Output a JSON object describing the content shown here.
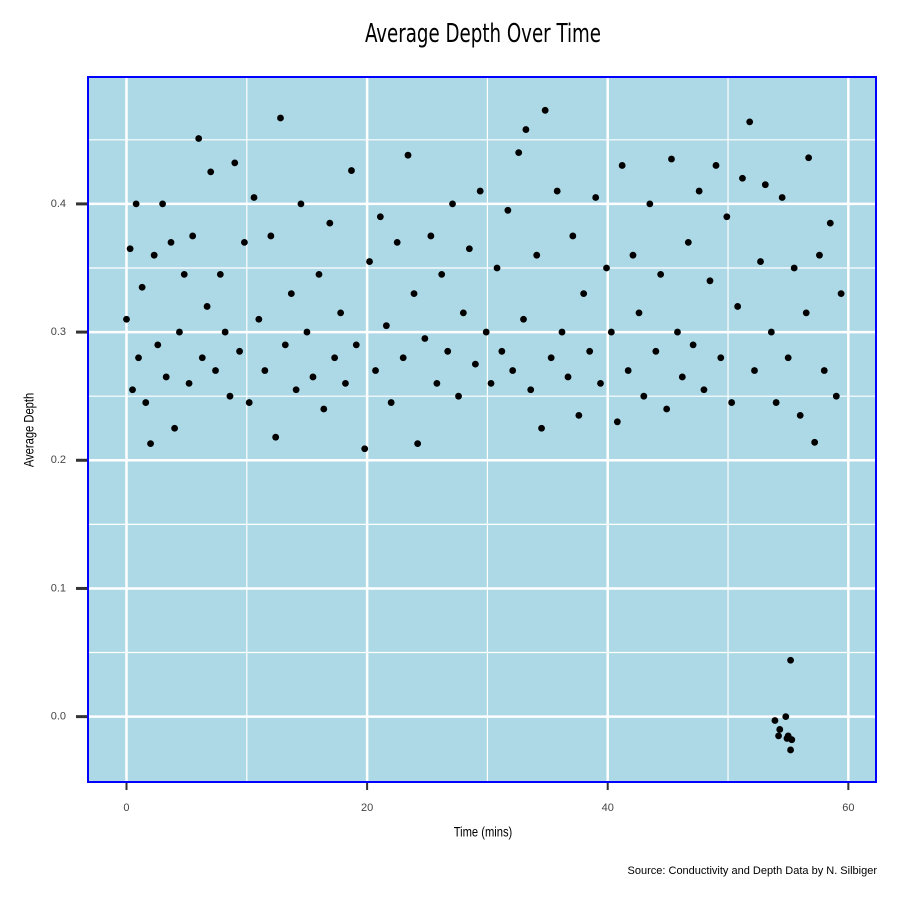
{
  "chart_data": {
    "type": "scatter",
    "title": "Average Depth Over Time",
    "x_label": "Time (mins)",
    "y_label": "Average Depth",
    "caption": "Source: Conductivity and Depth Data by N. Silbiger",
    "color": "#000000",
    "panel_color": "#add8e6",
    "border_color": "#0000ff",
    "grid": true,
    "xlim": [
      -3.2,
      62.3
    ],
    "ylim": [
      -0.051,
      0.499
    ],
    "xticks": [
      0,
      20,
      40,
      60
    ],
    "yticks": [
      {
        "value": 0,
        "label": "0.0"
      },
      0.1,
      0.2,
      0.3,
      0.4
    ],
    "minor_xticks": [
      10,
      30,
      50
    ],
    "minor_yticks": [
      0.05,
      0.15,
      0.25,
      0.35,
      0.45
    ],
    "x": [
      0,
      0.3,
      0.5,
      0.8,
      1,
      1.3,
      1.6,
      2,
      2.3,
      2.6,
      3,
      3.3,
      3.7,
      4,
      4.4,
      4.8,
      5.2,
      5.5,
      6,
      6.3,
      6.7,
      7,
      7.4,
      7.8,
      8.2,
      8.6,
      9,
      9.4,
      9.8,
      10.2,
      10.6,
      11,
      11.5,
      12,
      12.4,
      12.8,
      13.2,
      13.7,
      14.1,
      14.5,
      15,
      15.5,
      16,
      16.4,
      16.9,
      17.3,
      17.8,
      18.2,
      18.7,
      19.1,
      19.8,
      20.2,
      20.7,
      21.1,
      21.6,
      22,
      22.5,
      23,
      23.4,
      23.9,
      24.2,
      24.8,
      25.3,
      25.8,
      26.2,
      26.7,
      27.1,
      27.6,
      28,
      28.5,
      29,
      29.4,
      29.9,
      30.3,
      30.8,
      31.2,
      31.7,
      32.1,
      32.6,
      33,
      33.2,
      33.6,
      34.1,
      34.5,
      34.8,
      35.3,
      35.8,
      36.2,
      36.7,
      37.1,
      37.6,
      38,
      38.5,
      39,
      39.4,
      39.9,
      40.3,
      40.8,
      41.2,
      41.7,
      42.1,
      42.6,
      43,
      43.5,
      44,
      44.4,
      44.9,
      45.3,
      45.8,
      46.2,
      46.7,
      47.1,
      47.6,
      48,
      48.5,
      49,
      49.4,
      49.9,
      50.3,
      50.8,
      51.2,
      51.8,
      52.2,
      52.7,
      53.1,
      53.6,
      54,
      54.5,
      55,
      55.5,
      56,
      56.5,
      56.7,
      57.2,
      57.6,
      58,
      58.5,
      59,
      59.4,
      55.2,
      53.9,
      54.3,
      54.2,
      54.8,
      55,
      55.3,
      55.2,
      54.9
    ],
    "y": [
      0.31,
      0.365,
      0.255,
      0.4,
      0.28,
      0.335,
      0.245,
      0.213,
      0.36,
      0.29,
      0.4,
      0.265,
      0.37,
      0.225,
      0.3,
      0.345,
      0.26,
      0.375,
      0.451,
      0.28,
      0.32,
      0.425,
      0.27,
      0.345,
      0.3,
      0.25,
      0.432,
      0.285,
      0.37,
      0.245,
      0.405,
      0.31,
      0.27,
      0.375,
      0.218,
      0.467,
      0.29,
      0.33,
      0.255,
      0.4,
      0.3,
      0.265,
      0.345,
      0.24,
      0.385,
      0.28,
      0.315,
      0.26,
      0.426,
      0.29,
      0.209,
      0.355,
      0.27,
      0.39,
      0.305,
      0.245,
      0.37,
      0.28,
      0.438,
      0.33,
      0.213,
      0.295,
      0.375,
      0.26,
      0.345,
      0.285,
      0.4,
      0.25,
      0.315,
      0.365,
      0.275,
      0.41,
      0.3,
      0.26,
      0.35,
      0.285,
      0.395,
      0.27,
      0.44,
      0.31,
      0.458,
      0.255,
      0.36,
      0.225,
      0.473,
      0.28,
      0.41,
      0.3,
      0.265,
      0.375,
      0.235,
      0.33,
      0.285,
      0.405,
      0.26,
      0.35,
      0.3,
      0.23,
      0.43,
      0.27,
      0.36,
      0.315,
      0.25,
      0.4,
      0.285,
      0.345,
      0.24,
      0.435,
      0.3,
      0.265,
      0.37,
      0.29,
      0.41,
      0.255,
      0.34,
      0.43,
      0.28,
      0.39,
      0.245,
      0.32,
      0.42,
      0.464,
      0.27,
      0.355,
      0.415,
      0.3,
      0.245,
      0.405,
      0.28,
      0.35,
      0.235,
      0.315,
      0.436,
      0.214,
      0.36,
      0.27,
      0.385,
      0.25,
      0.33,
      0.044,
      -0.003,
      -0.01,
      -0.015,
      0.0,
      -0.015,
      -0.018,
      -0.026,
      -0.017
    ]
  }
}
